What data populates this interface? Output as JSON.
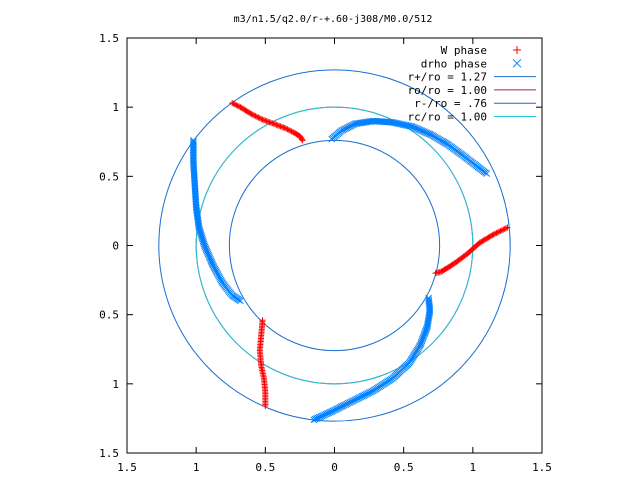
{
  "chart_data": {
    "type": "scatter",
    "title": "m3/n1.5/q2.0/r-+.60-j308/M0.0/512",
    "xlabel": "",
    "ylabel": "",
    "xlim": [
      -1.5,
      1.5
    ],
    "ylim": [
      -1.5,
      1.5
    ],
    "x_ticks": [
      -1.5,
      -1,
      -0.5,
      0,
      0.5,
      1,
      1.5
    ],
    "y_ticks": [
      -1.5,
      -1,
      -0.5,
      0,
      0.5,
      1,
      1.5
    ],
    "x_tick_labels": [
      "1.5",
      "1",
      "0.5",
      "0",
      "0.5",
      "1",
      "1.5"
    ],
    "y_tick_labels": [
      "1.5",
      "1",
      "0.5",
      "0",
      "0.5",
      "1",
      "1.5"
    ],
    "grid": false,
    "legend_position": "top-right",
    "series": [
      {
        "name": "W phase",
        "marker": "+",
        "color": "#ff0000",
        "arms": [
          {
            "x": [
              -0.74,
              -0.68,
              -0.6,
              -0.52,
              -0.44,
              -0.36,
              -0.3,
              -0.25,
              -0.23
            ],
            "y": [
              1.03,
              1.0,
              0.95,
              0.91,
              0.88,
              0.85,
              0.82,
              0.79,
              0.76
            ]
          },
          {
            "x": [
              1.25,
              1.15,
              1.05,
              0.96,
              0.88,
              0.82,
              0.77,
              0.73
            ],
            "y": [
              0.13,
              0.08,
              0.02,
              -0.06,
              -0.12,
              -0.16,
              -0.19,
              -0.2
            ]
          },
          {
            "x": [
              -0.52,
              -0.53,
              -0.54,
              -0.53,
              -0.51,
              -0.5,
              -0.5
            ],
            "y": [
              -0.54,
              -0.65,
              -0.76,
              -0.87,
              -0.96,
              -1.06,
              -1.16
            ]
          }
        ]
      },
      {
        "name": "drho phase",
        "marker": "x",
        "color": "#0080ff",
        "arms": [
          {
            "x": [
              -0.02,
              0.05,
              0.15,
              0.28,
              0.42,
              0.56,
              0.7,
              0.82,
              0.93,
              1.02,
              1.1
            ],
            "y": [
              0.77,
              0.83,
              0.88,
              0.9,
              0.89,
              0.86,
              0.8,
              0.73,
              0.65,
              0.58,
              0.52
            ]
          },
          {
            "x": [
              -1.02,
              -1.02,
              -1.01,
              -1.0,
              -0.98,
              -0.94,
              -0.88,
              -0.81,
              -0.74,
              -0.68
            ],
            "y": [
              0.76,
              0.6,
              0.44,
              0.28,
              0.13,
              0.0,
              -0.14,
              -0.27,
              -0.36,
              -0.4
            ]
          },
          {
            "x": [
              -0.15,
              -0.02,
              0.12,
              0.28,
              0.42,
              0.54,
              0.62,
              0.67,
              0.69,
              0.68
            ],
            "y": [
              -1.26,
              -1.2,
              -1.13,
              -1.05,
              -0.96,
              -0.85,
              -0.72,
              -0.59,
              -0.47,
              -0.38
            ]
          }
        ]
      }
    ],
    "circles": [
      {
        "name": "r+/ro = 1.27",
        "radius": 1.27,
        "color": "#1a6fd0"
      },
      {
        "name": "ro/ro = 1.00",
        "radius": 1.0,
        "color": "#a0206d"
      },
      {
        "name": "r-/ro = .76",
        "radius": 0.76,
        "color": "#1a6fd0"
      },
      {
        "name": "rc/ro = 1.00",
        "radius": 1.0,
        "color": "#20c8d8"
      }
    ]
  }
}
